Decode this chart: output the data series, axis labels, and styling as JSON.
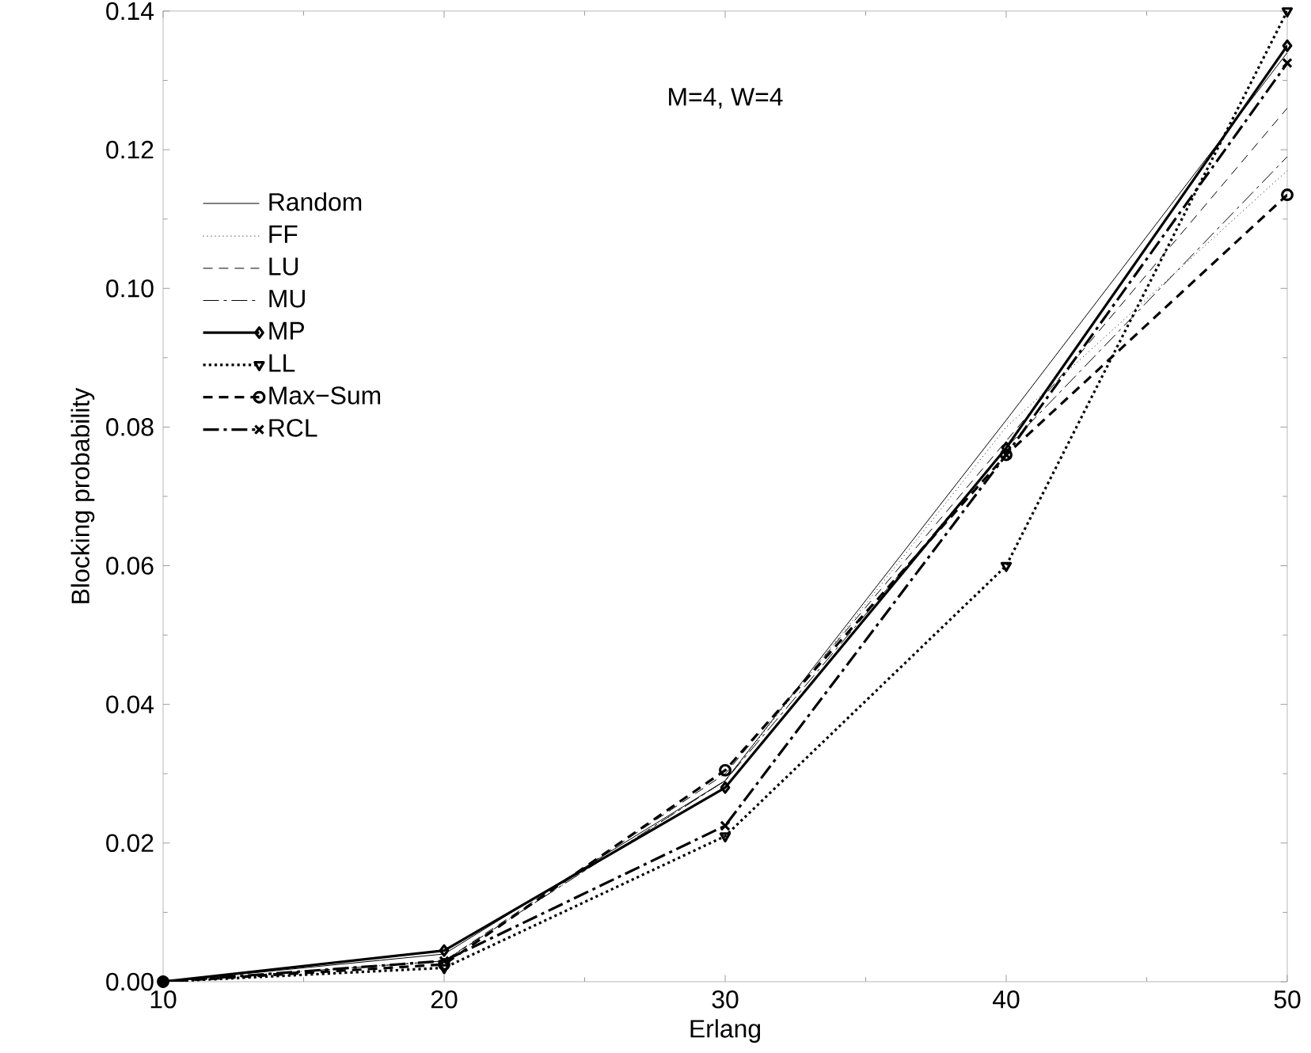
{
  "chart_data": {
    "type": "line",
    "xlabel": "Erlang",
    "ylabel": "Blocking probability",
    "annotations": [
      "M=4, W=4"
    ],
    "x": [
      10,
      20,
      30,
      40,
      50
    ],
    "xlim": [
      10,
      50
    ],
    "xticks": [
      10,
      20,
      30,
      40,
      50
    ],
    "ylim": [
      0,
      0.14
    ],
    "yticks": [
      {
        "value": 0,
        "label": "0.00"
      },
      {
        "value": 0.02,
        "label": "0.02"
      },
      {
        "value": 0.04,
        "label": "0.04"
      },
      {
        "value": 0.06,
        "label": "0.06"
      },
      {
        "value": 0.08,
        "label": "0.08"
      },
      {
        "value": 0.1,
        "label": "0.10"
      },
      {
        "value": 0.12,
        "label": "0.12"
      },
      {
        "value": 0.14,
        "label": "0.14"
      }
    ],
    "grid": false,
    "legend": "top left",
    "series": [
      {
        "name": "Random",
        "color": "#000000",
        "line_style": "solid",
        "marker": "none",
        "values": [
          0,
          0.004,
          0.029,
          0.081,
          0.134
        ]
      },
      {
        "name": "FF",
        "color": "#000000",
        "line_style": "dotted",
        "marker": "none",
        "values": [
          0,
          0.003,
          0.029,
          0.08,
          0.117
        ]
      },
      {
        "name": "LU",
        "color": "#000000",
        "line_style": "dashed",
        "marker": "none",
        "values": [
          0,
          0.003,
          0.03,
          0.078,
          0.126
        ]
      },
      {
        "name": "MU",
        "color": "#000000",
        "line_style": "dashdot",
        "marker": "none",
        "values": [
          0,
          0.003,
          0.029,
          0.077,
          0.119
        ]
      },
      {
        "name": "MP",
        "color": "#000000",
        "line_style": "solid",
        "marker": "diamond",
        "values": [
          0,
          0.0045,
          0.028,
          0.077,
          0.135
        ]
      },
      {
        "name": "LL",
        "color": "#000000",
        "line_style": "dotted",
        "marker": "triangle",
        "values": [
          0,
          0.002,
          0.021,
          0.06,
          0.14
        ]
      },
      {
        "name": "Max−Sum",
        "color": "#000000",
        "line_style": "dashed",
        "marker": "circle",
        "values": [
          0,
          0.0025,
          0.0305,
          0.076,
          0.1135
        ]
      },
      {
        "name": "RCL",
        "color": "#000000",
        "line_style": "dashdot",
        "marker": "cross",
        "values": [
          0,
          0.003,
          0.0225,
          0.076,
          0.1325
        ]
      }
    ]
  }
}
